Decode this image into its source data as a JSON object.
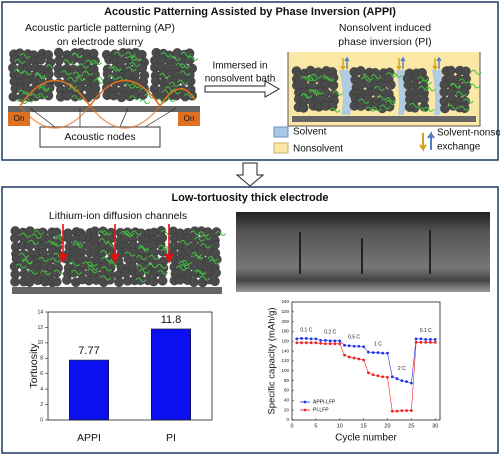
{
  "top_panel": {
    "title": "Acoustic Patterning Assisted by Phase Inversion (APPI)",
    "left_label": [
      "Acoustic particle patterning (AP)",
      "on electrode slurry"
    ],
    "step_label": [
      "Immersed in",
      "nonsolvent bath"
    ],
    "right_label": [
      "Nonsolvent induced",
      "phase inversion (PI)"
    ],
    "transducer_labels": [
      "On",
      "On"
    ],
    "nodes_label": "Acoustic nodes",
    "legend": {
      "solvent": "Solvent",
      "nonsolvent": "Nonsolvent",
      "exchange": [
        "Solvent-nonsolvent",
        "exchange"
      ]
    }
  },
  "bottom_panel": {
    "title": "Low-tortuosity thick electrode",
    "channels_label": "Lithium-ion diffusion channels"
  },
  "chart_data": [
    {
      "type": "bar",
      "ylabel": "Tortuosity",
      "categories": [
        "APPI",
        "PI"
      ],
      "values": [
        7.77,
        11.8
      ],
      "color": "#0a10f0",
      "ylim": [
        0,
        14
      ],
      "yticks": [
        0,
        2,
        4,
        6,
        8,
        10,
        12,
        14
      ]
    },
    {
      "type": "line",
      "xlabel": "Cycle number",
      "ylabel": "Specific capacity (mAh/g)",
      "x": [
        1,
        2,
        3,
        4,
        5,
        6,
        7,
        8,
        9,
        10,
        11,
        12,
        13,
        14,
        15,
        16,
        17,
        18,
        19,
        20,
        21,
        22,
        23,
        24,
        25,
        26,
        27,
        28,
        29,
        30
      ],
      "series": [
        {
          "name": "APPI-LFP",
          "color": "#2233ee",
          "values": [
            165,
            166,
            166,
            165,
            165,
            162,
            162,
            161,
            161,
            161,
            152,
            151,
            150,
            150,
            149,
            138,
            137,
            137,
            136,
            136,
            88,
            84,
            80,
            78,
            75,
            165,
            165,
            164,
            164,
            164
          ]
        },
        {
          "name": "PI-LFP",
          "color": "#ee2222",
          "values": [
            157,
            157,
            157,
            157,
            157,
            156,
            155,
            155,
            155,
            155,
            132,
            128,
            126,
            124,
            122,
            96,
            92,
            90,
            88,
            87,
            18,
            18,
            19,
            19,
            19,
            158,
            158,
            158,
            158,
            158
          ]
        }
      ],
      "annotations": [
        "0.1 C",
        "0.2 C",
        "0.5 C",
        "1 C",
        "2 C",
        "0.1 C"
      ],
      "xlim": [
        0,
        31
      ],
      "xticks": [
        0,
        5,
        10,
        15,
        20,
        25,
        30
      ],
      "ylim": [
        0,
        240
      ],
      "yticks": [
        0,
        20,
        40,
        60,
        80,
        100,
        120,
        140,
        160,
        180,
        200,
        220,
        240
      ],
      "legend": "lower left"
    }
  ]
}
